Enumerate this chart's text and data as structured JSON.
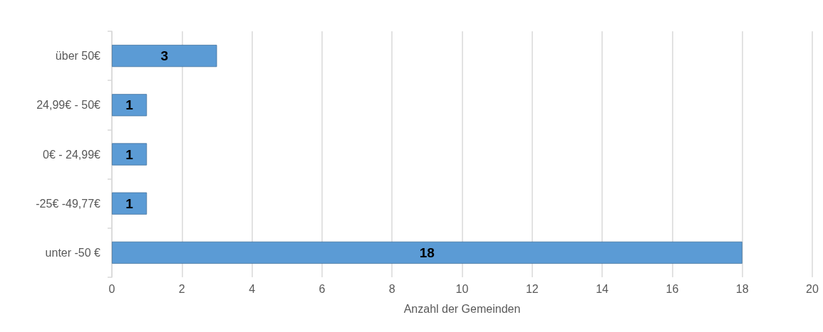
{
  "chart_data": {
    "type": "bar",
    "orientation": "horizontal",
    "xlabel": "Anzahl der Gemeinden",
    "categories": [
      "über 50€",
      "24,99€ - 50€",
      "0€ - 24,99€",
      "-25€ -49,77€",
      "unter -50 €"
    ],
    "values": [
      3,
      1,
      1,
      1,
      18
    ],
    "color": "#5b9bd5",
    "xlim": [
      0,
      20
    ],
    "xticks": [
      0,
      2,
      4,
      6,
      8,
      10,
      12,
      14,
      16,
      18,
      20
    ],
    "grid": "x",
    "data_labels": true
  }
}
